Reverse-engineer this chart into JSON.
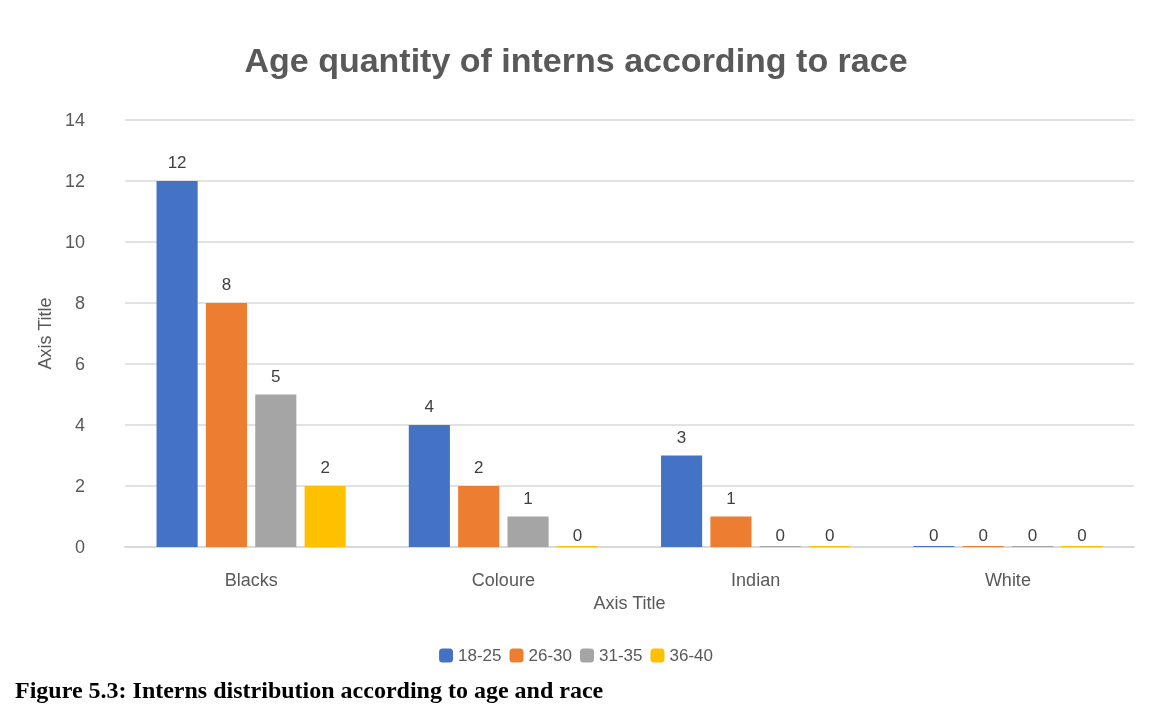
{
  "chart_data": {
    "type": "bar",
    "title": "Age quantity of interns according to race",
    "xlabel": "Axis Title",
    "ylabel": "Axis Title",
    "categories": [
      "Blacks",
      "Coloure",
      "Indian",
      "White"
    ],
    "series": [
      {
        "name": "18-25",
        "color": "#4472c4",
        "values": [
          12,
          4,
          3,
          0
        ]
      },
      {
        "name": "26-30",
        "color": "#ed7d31",
        "values": [
          8,
          2,
          1,
          0
        ]
      },
      {
        "name": "31-35",
        "color": "#a5a5a5",
        "values": [
          5,
          1,
          0,
          0
        ]
      },
      {
        "name": "36-40",
        "color": "#ffc000",
        "values": [
          2,
          0,
          0,
          0
        ]
      }
    ],
    "ylim": [
      0,
      14
    ],
    "yticks": [
      0,
      2,
      4,
      6,
      8,
      10,
      12,
      14
    ],
    "grid": "y",
    "legend": "bottom",
    "data_labels": true,
    "annotations": [
      "Figure 5.3: Interns distribution according to age and race"
    ]
  }
}
